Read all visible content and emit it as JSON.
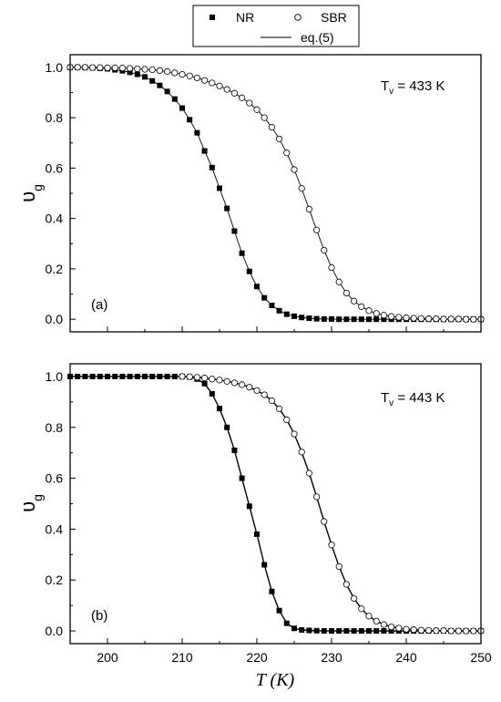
{
  "legend": {
    "nr_label": "NR",
    "sbr_label": "SBR",
    "fit_label": "eq.(5)"
  },
  "chart_data": [
    {
      "type": "line",
      "panel_label": "(a)",
      "annotation": {
        "prefix": "T",
        "sub": "v",
        "suffix": " = 433 K"
      },
      "xlabel": "T (K)",
      "ylabel_main": "υ",
      "ylabel_sub": "g",
      "xlim": [
        195,
        250
      ],
      "ylim": [
        -0.05,
        1.05
      ],
      "xticks": [
        200,
        210,
        220,
        230,
        240,
        250
      ],
      "yticks": [
        "0.0",
        "0.2",
        "0.4",
        "0.6",
        "0.8",
        "1.0"
      ],
      "show_x_ticklabels": false,
      "series": [
        {
          "name": "NR",
          "marker": "filled-square",
          "x": [
            195,
            196,
            197,
            198,
            199,
            200,
            201,
            202,
            203,
            204,
            205,
            206,
            207,
            208,
            209,
            210,
            211,
            212,
            213,
            214,
            215,
            216,
            217,
            218,
            219,
            220,
            221,
            222,
            223,
            224,
            225,
            226,
            227,
            228,
            229,
            230,
            231,
            232,
            233,
            234,
            235,
            236,
            237,
            238,
            239,
            240,
            241,
            242,
            243,
            244,
            245,
            246,
            247,
            248,
            249,
            250
          ],
          "y": [
            1.0,
            1.0,
            0.999,
            0.998,
            0.996,
            0.994,
            0.99,
            0.986,
            0.98,
            0.972,
            0.962,
            0.946,
            0.928,
            0.904,
            0.874,
            0.838,
            0.792,
            0.74,
            0.668,
            0.602,
            0.52,
            0.44,
            0.35,
            0.262,
            0.19,
            0.13,
            0.085,
            0.055,
            0.034,
            0.02,
            0.012,
            0.007,
            0.004,
            0.002,
            0.001,
            0.001,
            0.0,
            0.0,
            0.0,
            0.0,
            0.0,
            0.0,
            0.0,
            0.0,
            0.0,
            0.0,
            0.0,
            0.0,
            0.0,
            0.0,
            0.0,
            0.0,
            0.0,
            0.0,
            0.0,
            0.0
          ]
        },
        {
          "name": "SBR",
          "marker": "open-circle",
          "x": [
            195,
            196,
            197,
            198,
            199,
            200,
            201,
            202,
            203,
            204,
            205,
            206,
            207,
            208,
            209,
            210,
            211,
            212,
            213,
            214,
            215,
            216,
            217,
            218,
            219,
            220,
            221,
            222,
            223,
            224,
            225,
            226,
            227,
            228,
            229,
            230,
            231,
            232,
            233,
            234,
            235,
            236,
            237,
            238,
            239,
            240,
            241,
            242,
            243,
            244,
            245,
            246,
            247,
            248,
            249,
            250
          ],
          "y": [
            1.0,
            1.0,
            1.0,
            0.999,
            0.999,
            0.998,
            0.998,
            0.997,
            0.996,
            0.994,
            0.992,
            0.99,
            0.987,
            0.983,
            0.978,
            0.972,
            0.966,
            0.958,
            0.948,
            0.938,
            0.926,
            0.912,
            0.897,
            0.879,
            0.858,
            0.832,
            0.8,
            0.762,
            0.716,
            0.66,
            0.594,
            0.519,
            0.437,
            0.354,
            0.274,
            0.205,
            0.148,
            0.104,
            0.072,
            0.05,
            0.034,
            0.023,
            0.016,
            0.011,
            0.008,
            0.006,
            0.004,
            0.003,
            0.002,
            0.002,
            0.001,
            0.001,
            0.001,
            0.0,
            0.0,
            0.0
          ]
        }
      ]
    },
    {
      "type": "line",
      "panel_label": "(b)",
      "annotation": {
        "prefix": "T",
        "sub": "v",
        "suffix": " = 443 K"
      },
      "xlabel": "T (K)",
      "ylabel_main": "υ",
      "ylabel_sub": "g",
      "xlim": [
        195,
        250
      ],
      "ylim": [
        -0.05,
        1.05
      ],
      "xticks": [
        200,
        210,
        220,
        230,
        240,
        250
      ],
      "yticks": [
        "0.0",
        "0.2",
        "0.4",
        "0.6",
        "0.8",
        "1.0"
      ],
      "show_x_ticklabels": true,
      "series": [
        {
          "name": "NR",
          "marker": "filled-square",
          "x": [
            195,
            196,
            197,
            198,
            199,
            200,
            201,
            202,
            203,
            204,
            205,
            206,
            207,
            208,
            209,
            210,
            211,
            212,
            213,
            214,
            215,
            216,
            217,
            218,
            219,
            220,
            221,
            222,
            223,
            224,
            225,
            226,
            227,
            228,
            229,
            230,
            231,
            232,
            233,
            234,
            235,
            236,
            237,
            238,
            239,
            240,
            241,
            242,
            243,
            244,
            245,
            246,
            247,
            248,
            249,
            250
          ],
          "y": [
            1.0,
            1.0,
            1.0,
            1.0,
            1.0,
            1.0,
            1.0,
            1.0,
            1.0,
            1.0,
            1.0,
            1.0,
            1.0,
            1.0,
            1.0,
            1.0,
            0.998,
            0.99,
            0.972,
            0.932,
            0.874,
            0.8,
            0.71,
            0.6,
            0.49,
            0.38,
            0.26,
            0.155,
            0.08,
            0.03,
            0.01,
            0.004,
            0.002,
            0.001,
            0.0,
            0.0,
            0.0,
            0.0,
            0.0,
            0.0,
            0.0,
            0.0,
            0.0,
            0.0,
            0.0,
            0.0,
            0.0,
            0.0,
            0.0,
            0.0,
            0.0,
            0.0,
            0.0,
            0.0,
            0.0,
            0.0
          ]
        },
        {
          "name": "SBR",
          "marker": "open-circle",
          "x": [
            210,
            211,
            212,
            213,
            214,
            215,
            216,
            217,
            218,
            219,
            220,
            221,
            222,
            223,
            224,
            225,
            226,
            227,
            228,
            229,
            230,
            231,
            232,
            233,
            234,
            235,
            236,
            237,
            238,
            239,
            240,
            241,
            242,
            243,
            244,
            245,
            246,
            247,
            248,
            249,
            250
          ],
          "y": [
            1.0,
            0.999,
            0.997,
            0.994,
            0.99,
            0.986,
            0.981,
            0.975,
            0.968,
            0.958,
            0.945,
            0.928,
            0.905,
            0.873,
            0.83,
            0.774,
            0.703,
            0.62,
            0.527,
            0.43,
            0.338,
            0.253,
            0.183,
            0.128,
            0.087,
            0.058,
            0.038,
            0.025,
            0.016,
            0.011,
            0.007,
            0.005,
            0.003,
            0.002,
            0.001,
            0.001,
            0.0,
            0.0,
            0.0,
            0.0,
            0.0
          ]
        }
      ]
    }
  ]
}
